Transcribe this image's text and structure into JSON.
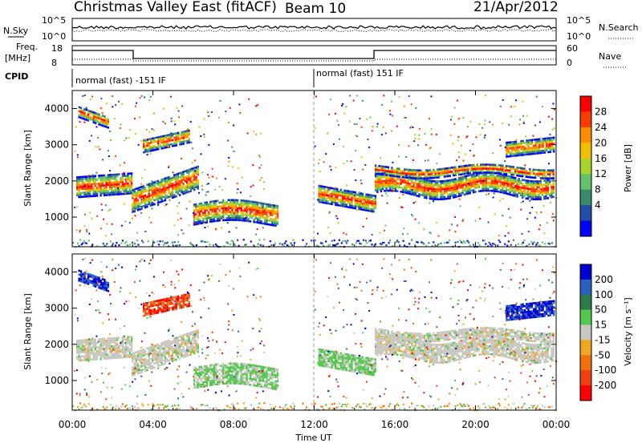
{
  "header": {
    "title": "Christmas Valley East (fitACF)",
    "beam": "Beam 10",
    "date": "21/Apr/2012"
  },
  "strips": {
    "nsky": {
      "label": "N.Sky",
      "ticks": [
        "10^5",
        "10^0"
      ],
      "right_label": "N.Search",
      "right_ticks": [
        "10^5",
        "10^0"
      ]
    },
    "freq": {
      "label_line1": "Freq.",
      "label_line2": "[MHz]",
      "ticks": [
        "18",
        "8"
      ],
      "right_label": "Nave",
      "right_ticks": [
        "60",
        "0"
      ]
    },
    "cpid": {
      "label": "CPID",
      "segments": [
        "normal (fast) -151 IF",
        "normal (fast) 151 IF"
      ]
    }
  },
  "chart_data": [
    {
      "type": "heatmap",
      "name": "power",
      "ylabel": "Slant Range [km]",
      "y_ticks": [
        "1000",
        "2000",
        "3000",
        "4000"
      ],
      "ylim": [
        180,
        4500
      ],
      "colorbar": {
        "label": "Power [dB]",
        "ticks": [
          "4",
          "8",
          "12",
          "16",
          "20",
          "24",
          "28"
        ],
        "colors": [
          "#0000ff",
          "#234ba8",
          "#3c8a6e",
          "#63c26a",
          "#a9d42a",
          "#f0c000",
          "#ff8c00",
          "#ff3c00",
          "#ff0000"
        ]
      }
    },
    {
      "type": "heatmap",
      "name": "velocity",
      "ylabel": "Slant Range [km]",
      "y_ticks": [
        "1000",
        "2000",
        "3000",
        "4000"
      ],
      "ylim": [
        180,
        4500
      ],
      "colorbar": {
        "label": "Velocity [m s⁻¹]",
        "ticks": [
          "200",
          "100",
          "50",
          "15",
          "-15",
          "-50",
          "-100",
          "-200"
        ],
        "colors": [
          "#0000d0",
          "#2a5fc0",
          "#2f7a4a",
          "#52c84c",
          "#c8c8c0",
          "#f0a820",
          "#f07010",
          "#f04010",
          "#ff0000"
        ]
      }
    }
  ],
  "x_axis": {
    "label": "Time UT",
    "ticks": [
      "00:00",
      "04:00",
      "08:00",
      "12:00",
      "16:00",
      "20:00",
      "00:00"
    ]
  }
}
